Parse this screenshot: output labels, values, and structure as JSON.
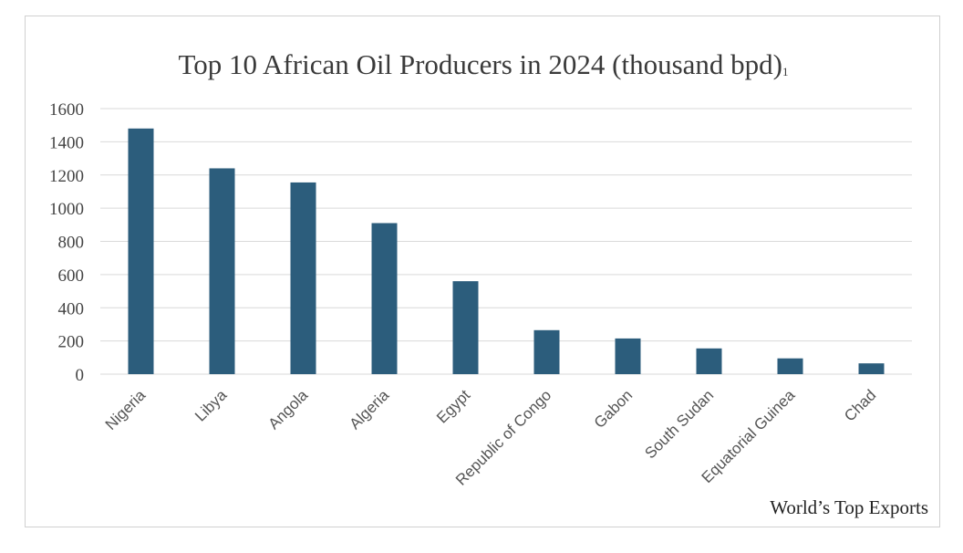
{
  "chart_data": {
    "type": "bar",
    "title": "Top 10 African Oil Producers in 2024 (thousand bpd)",
    "title_superscript": "1",
    "categories": [
      "Nigeria",
      "Libya",
      "Angola",
      "Algeria",
      "Egypt",
      "Republic of Congo",
      "Gabon",
      "South Sudan",
      "Equatorial Guinea",
      "Chad"
    ],
    "values": [
      1480,
      1240,
      1155,
      910,
      560,
      265,
      215,
      155,
      95,
      65
    ],
    "ylim": [
      0,
      1600
    ],
    "yticks": [
      "0",
      "200",
      "400",
      "600",
      "800",
      "1000",
      "1200",
      "1400",
      "1600"
    ],
    "xlabel": "",
    "ylabel": "",
    "grid": true,
    "bar_color": "#2c5d7c"
  },
  "source_label": "World’s Top Exports"
}
